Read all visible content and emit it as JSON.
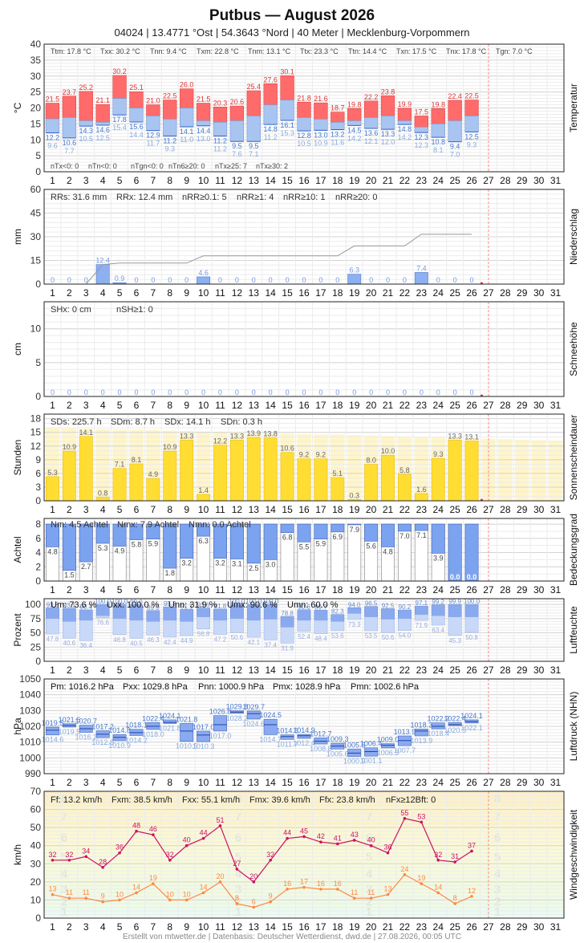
{
  "header": {
    "title": "Putbus  —  August 2026",
    "subtitle": "04024  |  13.4771 °Ost  |  54.3643 °Nord  |  40 Meter  |  Mecklenburg-Vorpommern"
  },
  "footer": "Erstellt von mtwetter.de | Datenbasis: Deutscher Wetterdienst, dwd.de | 27.08.2026, 00:05 UTC",
  "colors": {
    "tmax": "#ff6b6b",
    "tmin": "#a8c4f0",
    "rain": "#8cb0f0",
    "sun": "#ffdd33",
    "sun_bg": "#fff5c8",
    "cloud": "#7ba3ef",
    "humid_dark": "#8aaaf0",
    "humid_light": "#c8d8f8",
    "wind_max": "#cc1166",
    "wind_mean": "#ff8844",
    "today_line": "#ff8888"
  },
  "days": [
    1,
    2,
    3,
    4,
    5,
    6,
    7,
    8,
    9,
    10,
    11,
    12,
    13,
    14,
    15,
    16,
    17,
    18,
    19,
    20,
    21,
    22,
    23,
    24,
    25,
    26,
    27,
    28,
    29,
    30,
    31
  ],
  "chart_data": [
    {
      "type": "bar",
      "key": "temp",
      "side_label": "Temperatur",
      "ylabel": "°C",
      "ylim": [
        0,
        40
      ],
      "yticks": [
        0,
        5,
        10,
        15,
        20,
        25,
        30,
        35,
        40
      ],
      "stats": [
        "Ttm: 17.8 °C",
        "Txx: 30.2 °C",
        "Tnn: 9.4 °C",
        "Txm: 22.8 °C",
        "Tnm: 13.1 °C",
        "Ttx: 23.3 °C",
        "Ttn: 14.4 °C",
        "Txn: 17.5 °C",
        "Tnx: 17.8 °C",
        "Tgn: 7.0 °C"
      ],
      "stats2": [
        "nTx<0: 0",
        "nTn<0: 0",
        "nTgn<0: 0",
        "nTn6≥20: 0",
        "nTx≥25: 7",
        "nTx≥30: 2"
      ],
      "series": [
        {
          "name": "Tmax",
          "values": [
            21.5,
            23.7,
            25.2,
            21.1,
            30.2,
            25.1,
            21.0,
            22.5,
            26.0,
            21.5,
            20.3,
            20.6,
            25.4,
            27.6,
            30.1,
            21.8,
            21.6,
            18.7,
            19.8,
            22.2,
            23.8,
            19.9,
            17.5,
            19.8,
            22.4,
            22.5
          ]
        },
        {
          "name": "Tmean",
          "values": [
            16.6,
            17.0,
            16.0,
            15.5,
            23.0,
            20.0,
            17.5,
            16.5,
            20.0,
            16.0,
            15.5,
            16.0,
            17.5,
            21.0,
            22.5,
            17.0,
            16.5,
            15.5,
            16.0,
            17.0,
            17.5,
            16.0,
            14.0,
            15.0,
            16.0,
            17.5
          ]
        },
        {
          "name": "Tmin",
          "values": [
            12.2,
            10.6,
            14.3,
            14.6,
            17.8,
            15.6,
            12.9,
            11.2,
            14.1,
            14.4,
            11.2,
            9.5,
            9.5,
            14.8,
            16.1,
            12.8,
            13.0,
            13.2,
            14.5,
            13.6,
            13.3,
            14.8,
            12.3,
            10.8,
            9.4,
            12.5
          ]
        },
        {
          "name": "Tgn",
          "values": [
            9.6,
            7.7,
            10.5,
            12.5,
            15.4,
            14.4,
            11.7,
            9.3,
            11.0,
            13.0,
            11.2,
            7.6,
            7.1,
            11.2,
            15.3,
            10.5,
            10.9,
            11.6,
            14.2,
            12.1,
            12.0,
            14.2,
            12.3,
            8.1,
            7.0,
            9.3
          ]
        }
      ]
    },
    {
      "type": "bar",
      "key": "rain",
      "side_label": "Niederschlag",
      "ylabel": "mm",
      "ylim": [
        0,
        60
      ],
      "yticks": [
        0,
        15,
        30,
        45,
        60
      ],
      "stats": [
        "RRs: 31.6 mm",
        "RRx: 12.4 mm",
        "nRR≥0.1: 5",
        "nRR≥1: 4",
        "nRR≥10: 1",
        "nRR≥20: 0"
      ],
      "series": [
        {
          "name": "RR",
          "values": [
            0,
            0,
            0,
            12.4,
            0.9,
            0,
            0,
            0,
            0,
            4.6,
            0,
            0,
            0,
            0,
            0,
            0,
            0,
            0,
            6.3,
            0,
            0,
            0,
            7.4,
            0,
            0,
            0
          ]
        },
        {
          "name": "RRsum",
          "values": [
            0,
            0,
            0,
            12.4,
            13.3,
            13.3,
            13.3,
            13.3,
            13.3,
            17.9,
            17.9,
            17.9,
            17.9,
            17.9,
            17.9,
            17.9,
            17.9,
            17.9,
            24.2,
            24.2,
            24.2,
            24.2,
            31.6,
            31.6,
            31.6,
            31.6
          ]
        }
      ]
    },
    {
      "type": "bar",
      "key": "snow",
      "side_label": "Schneehöhe",
      "ylabel": "cm",
      "ylim": [
        0,
        14
      ],
      "yticks": [
        0,
        5,
        10
      ],
      "stats": [
        "SHx: 0 cm",
        "nSH≥1: 0"
      ],
      "series": [
        {
          "name": "SH",
          "values": [
            0,
            0,
            0,
            0,
            0,
            0,
            0,
            0,
            0,
            0,
            0,
            0,
            0,
            0,
            0,
            0,
            0,
            0,
            0,
            0,
            0,
            0,
            0,
            0,
            0,
            0
          ]
        }
      ]
    },
    {
      "type": "bar",
      "key": "sun",
      "side_label": "Sonnenscheindauer",
      "ylabel": "Stunden",
      "ylim": [
        0,
        19
      ],
      "yticks": [
        0,
        3,
        6,
        9,
        12,
        15,
        18
      ],
      "stats": [
        "SDs: 225.7 h",
        "SDm: 8.7 h",
        "SDx: 14.1 h",
        "SDn: 0.3 h"
      ],
      "series": [
        {
          "name": "SD",
          "values": [
            5.3,
            10.9,
            14.1,
            0.8,
            7.1,
            8.1,
            4.9,
            10.9,
            13.3,
            1.4,
            12.2,
            13.3,
            13.9,
            13.8,
            10.6,
            9.2,
            9.2,
            5.1,
            0.3,
            8.0,
            10.0,
            5.8,
            1.6,
            9.3,
            13.3,
            13.1
          ]
        },
        {
          "name": "SDmax",
          "values": [
            16.0,
            15.9,
            15.8,
            15.7,
            15.6,
            15.6,
            15.5,
            15.4,
            15.3,
            15.2,
            15.1,
            15.0,
            14.9,
            14.8,
            14.7,
            14.6,
            14.5,
            14.5,
            14.4,
            14.3,
            14.2,
            14.1,
            14.0,
            13.9,
            13.8,
            13.7,
            13.6,
            13.5,
            13.4,
            13.3,
            13.2
          ]
        }
      ]
    },
    {
      "type": "bar",
      "key": "cloud",
      "side_label": "Bedeckungsgrad",
      "ylabel": "Achtel",
      "ylim": [
        0,
        8.8
      ],
      "yticks": [
        0,
        2,
        4,
        6,
        8
      ],
      "stats": [
        "Nm: 4.5 Achtel",
        "Nmx: 7.9 Achtel",
        "Nmn: 0.0 Achtel"
      ],
      "series": [
        {
          "name": "N",
          "values": [
            4.8,
            1.5,
            2.7,
            5.3,
            4.9,
            5.8,
            5.9,
            1.8,
            3.2,
            6.3,
            3.2,
            3.1,
            2.5,
            3.0,
            6.8,
            5.5,
            5.9,
            6.9,
            7.9,
            5.6,
            4.8,
            7.0,
            7.1,
            3.9,
            0.0,
            0.0
          ]
        }
      ]
    },
    {
      "type": "bar",
      "key": "humid",
      "side_label": "Luftfeuchte",
      "ylabel": "Prozent",
      "ylim": [
        0,
        110
      ],
      "yticks": [
        0,
        25,
        50,
        75,
        100
      ],
      "stats": [
        "Um: 73.6 %",
        "Uxx: 100.0 %",
        "Unn: 31.9 %",
        "Umx: 90.6 %",
        "Umn: 60.0 %"
      ],
      "series": [
        {
          "name": "Umax",
          "values": [
            93.8,
            93.1,
            90.4,
            100,
            100,
            99.0,
            89.0,
            95.8,
            91.1,
            93.6,
            91.8,
            100,
            100,
            100,
            78.8,
            90.6,
            89.7,
            82.3,
            94.0,
            96.5,
            92.5,
            90.2,
            97.1,
            99.2,
            99.9,
            100
          ]
        },
        {
          "name": "Umean",
          "values": [
            75,
            70,
            72,
            80,
            75,
            72,
            70,
            72,
            70,
            78,
            72,
            75,
            72,
            74,
            60,
            72,
            72,
            70,
            84,
            78,
            74,
            75,
            82,
            80,
            78,
            78
          ]
        },
        {
          "name": "Umin",
          "values": [
            47.8,
            40.6,
            36.4,
            76.6,
            46.8,
            40.5,
            46.3,
            42.4,
            44.9,
            56.8,
            47.2,
            50.6,
            42.1,
            37.4,
            31.9,
            52.4,
            48.4,
            53.6,
            73.3,
            53.5,
            50.6,
            54.0,
            71.9,
            63.4,
            45.3,
            50.8
          ]
        }
      ]
    },
    {
      "type": "bar",
      "key": "press",
      "side_label": "Luftdruck (NHN)",
      "ylabel": "hPa",
      "ylim": [
        990,
        1050
      ],
      "yticks": [
        990,
        1000,
        1010,
        1020,
        1030,
        1040,
        1050
      ],
      "stats": [
        "Pm: 1016.2 hPa",
        "Pxx: 1029.8 hPa",
        "Pnn: 1000.9 hPa",
        "Pmx: 1028.9 hPa",
        "Pmn: 1002.6 hPa"
      ],
      "series": [
        {
          "name": "Pmax",
          "values": [
            1019.5,
            1021.6,
            1020.7,
            1017.2,
            1014.8,
            1018.1,
            1022.4,
            1024.1,
            1021.8,
            1017.0,
            1026.8,
            1029.8,
            1029.7,
            1024.5,
            1014.6,
            1014.9,
            1012.7,
            1009.3,
            1005.5,
            1006.4,
            1009.0,
            1013.9,
            1018.3,
            1022.2,
            1022.4,
            1024.1
          ]
        },
        {
          "name": "Pmean",
          "values": [
            1017.5,
            1020.5,
            1018.5,
            1015.0,
            1013.0,
            1016.0,
            1020.0,
            1022.5,
            1017.0,
            1014.5,
            1021.0,
            1029.0,
            1028.0,
            1021.0,
            1013.5,
            1014.0,
            1010.5,
            1007.5,
            1003.0,
            1004.0,
            1008.0,
            1011.0,
            1017.0,
            1020.0,
            1021.0,
            1023.0
          ]
        },
        {
          "name": "Pmin",
          "values": [
            1014.6,
            1019.5,
            1016.2,
            1012.8,
            1010.9,
            1014.2,
            1018.0,
            1021.8,
            1010.5,
            1010.3,
            1017.0,
            1028.2,
            1024.6,
            1014.7,
            1011.7,
            1012.4,
            1008.8,
            1005.6,
            1000.9,
            1001.1,
            1006.3,
            1007.7,
            1013.9,
            1018.4,
            1020.5,
            1022.1
          ]
        }
      ]
    },
    {
      "type": "line",
      "key": "wind",
      "side_label": "Windgeschwindigkeit",
      "ylabel": "km/h",
      "ylim": [
        0,
        70
      ],
      "yticks": [
        0,
        10,
        20,
        30,
        40,
        50,
        60,
        70
      ],
      "stats": [
        "Ff: 13.2 km/h",
        "Fxm: 38.5 km/h",
        "Fxx: 55.1 km/h",
        "Fmx: 39.6 km/h",
        "Ffx: 23.8 km/h",
        "nFx≥12Bft: 0"
      ],
      "bft_bands": [
        [
          0,
          1
        ],
        [
          1,
          6
        ],
        [
          6,
          12
        ],
        [
          12,
          20
        ],
        [
          20,
          29
        ],
        [
          29,
          39
        ],
        [
          39,
          50
        ],
        [
          50,
          62
        ],
        [
          62,
          75
        ]
      ],
      "series": [
        {
          "name": "Fx",
          "values": [
            32,
            32,
            34,
            28,
            36,
            48,
            46,
            32,
            40,
            44,
            51,
            27,
            20,
            32,
            44,
            45,
            42,
            41,
            43,
            40,
            36,
            55,
            53,
            32,
            31,
            37
          ]
        },
        {
          "name": "Ff",
          "values": [
            13,
            11,
            11,
            9,
            10,
            14,
            19,
            10,
            10,
            14,
            20,
            8,
            6,
            9,
            16,
            17,
            16,
            16,
            11,
            11,
            13,
            24,
            19,
            14,
            8,
            12
          ]
        }
      ]
    }
  ]
}
